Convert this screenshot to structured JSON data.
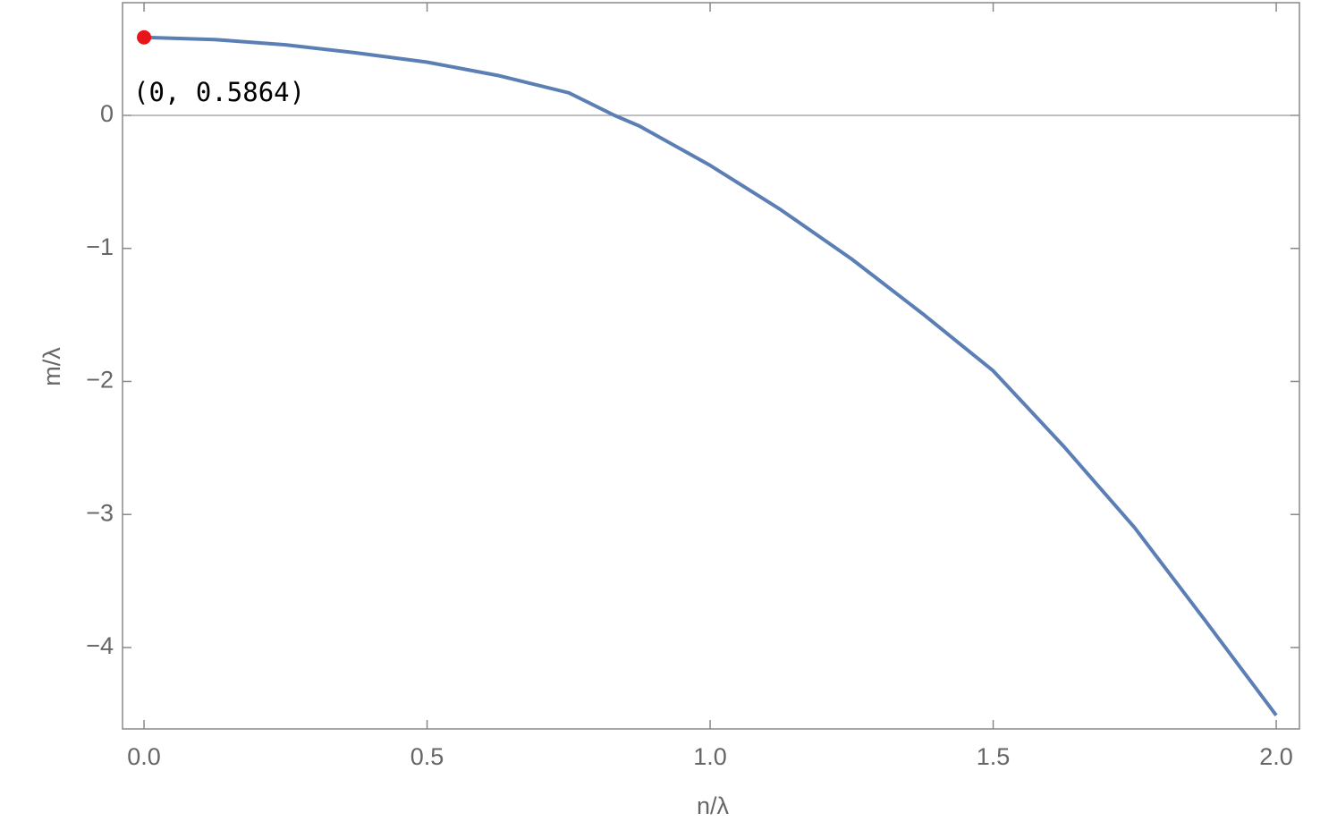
{
  "chart_data": {
    "type": "line",
    "x_label": "n/λ",
    "y_label": "m/λ",
    "x": [
      0,
      0.125,
      0.25,
      0.375,
      0.5,
      0.625,
      0.75,
      0.831,
      0.875,
      1.0,
      1.125,
      1.25,
      1.375,
      1.5,
      1.625,
      1.75,
      1.875,
      2.0
    ],
    "series": [
      {
        "color": "#5b7fb4",
        "values": [
          0.5864,
          0.57,
          0.53,
          0.47,
          0.4,
          0.3,
          0.17,
          0,
          -0.08,
          -0.376,
          -0.71,
          -1.08,
          -1.49,
          -1.92,
          -2.49,
          -3.1,
          -3.8,
          -4.51
        ]
      }
    ],
    "point": {
      "x": 0,
      "y": 0.5864,
      "label": "(0, 0.5864)",
      "color": "#e8141a"
    },
    "xlim": [
      -0.038,
      2.041
    ],
    "ylim": [
      -4.612,
      0.847
    ],
    "xticks": [
      {
        "value": 0,
        "label": "0.0"
      },
      0.5,
      {
        "value": 1,
        "label": "1.0"
      },
      1.5,
      {
        "value": 2,
        "label": "2.0"
      }
    ],
    "yticks": [
      {
        "value": -4,
        "label": "−4"
      },
      {
        "value": -3,
        "label": "−3"
      },
      {
        "value": -2,
        "label": "−2"
      },
      {
        "value": -1,
        "label": "−1"
      },
      0
    ],
    "zero_line": true
  }
}
